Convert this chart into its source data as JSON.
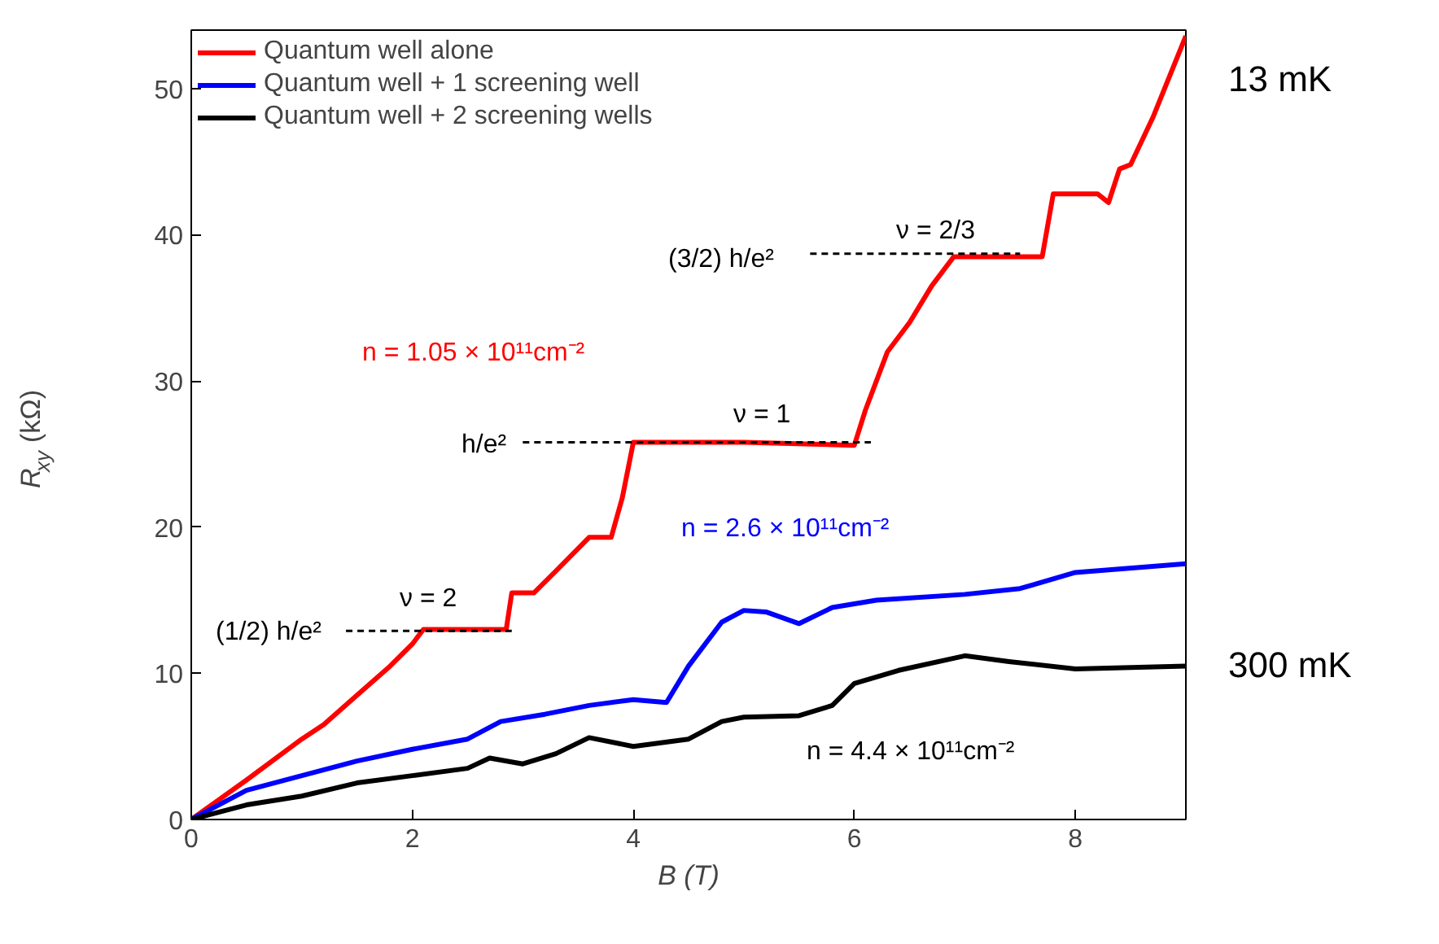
{
  "chart_data": {
    "type": "line",
    "xlabel": "B (T)",
    "ylabel": "R$_{xy}$ (kΩ)",
    "xlim": [
      0,
      9
    ],
    "ylim": [
      0,
      54
    ],
    "xticks": [
      0,
      2,
      4,
      6,
      8
    ],
    "yticks": [
      0,
      10,
      20,
      30,
      40,
      50
    ],
    "grid": false,
    "legend": "top left",
    "line_style": "solid",
    "marker": "none",
    "series": [
      {
        "name": "Quantum well alone",
        "color": "#ff0000",
        "x": [
          0,
          0.5,
          1,
          1.2,
          1.5,
          1.8,
          2.0,
          2.1,
          2.5,
          2.85,
          2.9,
          3.1,
          3.3,
          3.6,
          3.8,
          3.9,
          4.0,
          5.0,
          6.0,
          6.1,
          6.3,
          6.5,
          6.7,
          6.9,
          7.5,
          7.7,
          7.8,
          8.2,
          8.3,
          8.4,
          8.5,
          8.7,
          9.0
        ],
        "values": [
          0,
          2.7,
          5.5,
          6.5,
          8.5,
          10.5,
          12,
          13,
          13,
          13,
          15.5,
          15.5,
          17,
          19.3,
          19.3,
          22,
          25.8,
          25.8,
          25.6,
          28,
          32,
          34,
          36.5,
          38.5,
          38.5,
          38.5,
          42.8,
          42.8,
          42.2,
          44.5,
          44.8,
          48,
          53.6
        ]
      },
      {
        "name": "Quantum well + 1 screening well",
        "color": "#0000ff",
        "x": [
          0,
          0.5,
          1,
          1.5,
          2,
          2.5,
          2.8,
          3.2,
          3.6,
          4,
          4.3,
          4.5,
          4.8,
          5.0,
          5.2,
          5.5,
          5.8,
          6.2,
          7,
          7.5,
          8,
          9
        ],
        "values": [
          0,
          2,
          3,
          4,
          4.8,
          5.5,
          6.7,
          7.2,
          7.8,
          8.2,
          8,
          10.5,
          13.5,
          14.3,
          14.2,
          13.4,
          14.5,
          15,
          15.4,
          15.8,
          16.9,
          17.5
        ]
      },
      {
        "name": "Quantum well + 2 screening wells",
        "color": "#000000",
        "x": [
          0,
          0.5,
          1,
          1.5,
          2,
          2.5,
          2.7,
          3,
          3.3,
          3.6,
          4,
          4.5,
          4.8,
          5,
          5.5,
          5.8,
          6,
          6.4,
          7,
          7.4,
          8,
          9
        ],
        "values": [
          0,
          1,
          1.6,
          2.5,
          3,
          3.5,
          4.2,
          3.8,
          4.5,
          5.6,
          5,
          5.5,
          6.7,
          7,
          7.1,
          7.8,
          9.3,
          10.2,
          11.2,
          10.8,
          10.3,
          10.5
        ]
      },
      {
        "color": "#000000",
        "line_style": "dashed",
        "x": [
          1.4,
          2.9
        ],
        "values": [
          12.9,
          12.9
        ]
      },
      {
        "color": "#000000",
        "line_style": "dashed",
        "x": [
          3.0,
          6.15
        ],
        "values": [
          25.8,
          25.8
        ]
      },
      {
        "color": "#000000",
        "line_style": "dashed",
        "x": [
          5.6,
          7.5
        ],
        "values": [
          38.7,
          38.7
        ]
      }
    ],
    "annotations": [
      "ν = 2",
      "(1/2) h/e²",
      "ν = 1",
      "h/e²",
      "ν = 2/3",
      "(3/2) h/e²",
      "n = 1.05 × 10¹¹cm⁻²",
      "n = 2.6 × 10¹¹cm⁻²",
      "n = 4.4 × 10¹¹cm⁻²",
      "13 mK",
      "300 mK"
    ]
  }
}
